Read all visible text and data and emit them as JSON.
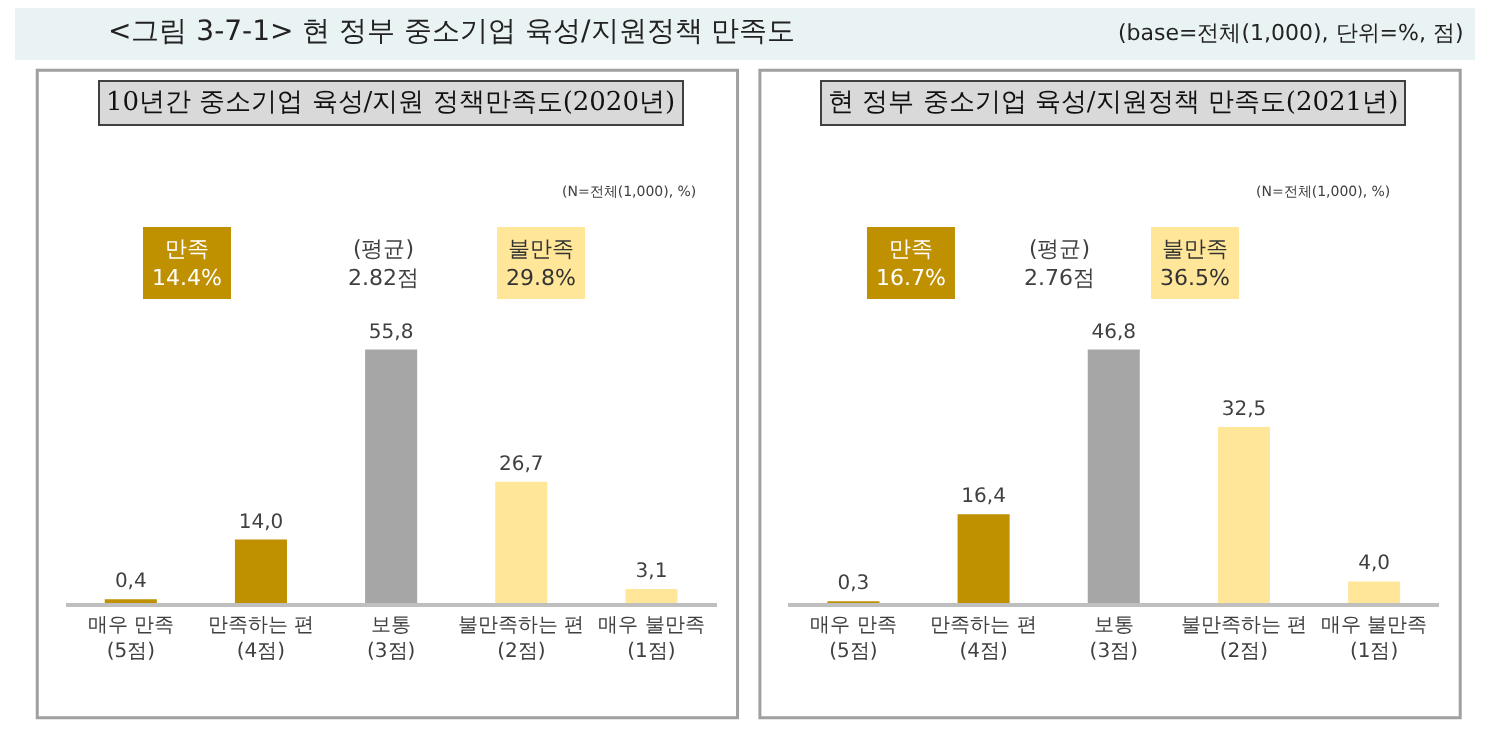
{
  "chart_data": [
    {
      "type": "other",
      "title": "<그림 3-7-1> 현 정부 중소기업 육성/지원정책 만족도",
      "annotations": [
        "(base=전체(1,000), 단위=%, 점)"
      ]
    },
    {
      "type": "bar",
      "title": "10년간 중소기업 육성/지원 정책만족도(2020년)",
      "categories": [
        "매우 만족\n(5점)",
        "만족하는 편\n(4점)",
        "보통\n(3점)",
        "불만족하는 편\n(2점)",
        "매우 불만족\n(1점)"
      ],
      "values": [
        0.4,
        14.0,
        55.8,
        26.7,
        3.1
      ],
      "value_labels": [
        "0,4",
        "14,0",
        "55,8",
        "26,7",
        "3,1"
      ],
      "colors": [
        "#bf9000",
        "#bf9000",
        "#a6a6a6",
        "#ffe699",
        "#ffe699"
      ],
      "annotations": [
        "(N=전체(1,000), %)",
        "만족\n14.4%",
        "(평균)\n2.82점",
        "불만족\n29.8%"
      ]
    },
    {
      "type": "bar",
      "title": "현 정부 중소기업 육성/지원정책 만족도(2021년)",
      "categories": [
        "매우 만족\n(5점)",
        "만족하는 편\n(4점)",
        "보통\n(3점)",
        "불만족하는 편\n(2점)",
        "매우 불만족\n(1점)"
      ],
      "values": [
        0.3,
        16.4,
        46.8,
        32.5,
        4.0
      ],
      "value_labels": [
        "0,3",
        "16,4",
        "46,8",
        "32,5",
        "4,0"
      ],
      "colors": [
        "#bf9000",
        "#bf9000",
        "#a6a6a6",
        "#ffe699",
        "#ffe699"
      ],
      "annotations": [
        "(N=전체(1,000), %)",
        "만족\n16.7%",
        "(평균)\n2.76점",
        "불만족\n36.5%"
      ]
    }
  ]
}
